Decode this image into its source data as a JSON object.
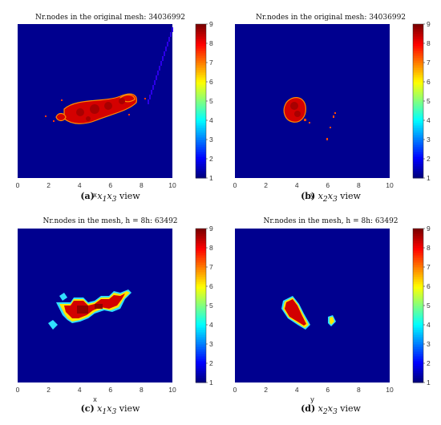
{
  "chart_data": [
    {
      "type": "heatmap",
      "title": "Nr.nodes in the original mesh: 34036992",
      "xlabel": "x",
      "xticks": [
        0,
        2,
        4,
        6,
        8,
        10
      ],
      "xlim": [
        0,
        10
      ],
      "colorbar": {
        "min": 1,
        "max": 9,
        "ticks": [
          1,
          2,
          3,
          4,
          5,
          6,
          7,
          8,
          9
        ]
      },
      "caption": {
        "label": "(a)",
        "var": "x",
        "sub1": "1",
        "var2": "x",
        "sub2": "3",
        "text": " view"
      },
      "background_value": 1,
      "description_regions": [
        {
          "cx": 6.5,
          "cy": 0.53,
          "rx": 1.9,
          "ry": 0.25,
          "rot": -10,
          "value": 9
        },
        {
          "cx": 4.2,
          "cy": 0.51,
          "rx": 1.0,
          "ry": 0.18,
          "rot": -5,
          "value": 9
        },
        {
          "cx": 7.6,
          "cy": 0.57,
          "rx": 0.5,
          "ry": 0.09,
          "rot": -20,
          "value": 9
        }
      ]
    },
    {
      "type": "heatmap",
      "title": "Nr.nodes in the original mesh: 34036992",
      "xlabel": "y",
      "xticks": [
        0,
        2,
        4,
        6,
        8,
        10
      ],
      "xlim": [
        0,
        10
      ],
      "colorbar": {
        "min": 1,
        "max": 9,
        "ticks": [
          1,
          2,
          3,
          4,
          5,
          6,
          7,
          8,
          9
        ]
      },
      "caption": {
        "label": "(b)",
        "var": "x",
        "sub1": "2",
        "var2": "x",
        "sub2": "3",
        "text": " view"
      },
      "background_value": 1,
      "description_regions": [
        {
          "cx": 3.7,
          "cy": 0.58,
          "rx": 0.45,
          "ry": 0.12,
          "rot": 0,
          "value": 9
        }
      ]
    },
    {
      "type": "heatmap",
      "title": "Nr.nodes in the mesh, h = 8h: 63492",
      "xlabel": "x",
      "xticks": [
        0,
        2,
        4,
        6,
        8,
        10
      ],
      "xlim": [
        0,
        10
      ],
      "colorbar": {
        "min": 1,
        "max": 9,
        "ticks": [
          1,
          2,
          3,
          4,
          5,
          6,
          7,
          8,
          9
        ]
      },
      "caption": {
        "label": "(c)",
        "var": "x",
        "sub1": "1",
        "var2": "x",
        "sub2": "3",
        "text": " view"
      },
      "background_value": 1,
      "description_regions": [
        {
          "cx": 5.5,
          "cy": 0.5,
          "rx": 2.3,
          "ry": 0.12,
          "rot": 0,
          "value": 9
        }
      ]
    },
    {
      "type": "heatmap",
      "title": "Nr.nodes in the mesh, h = 8h: 63492",
      "xlabel": "y",
      "xticks": [
        0,
        2,
        4,
        6,
        8,
        10
      ],
      "xlim": [
        0,
        10
      ],
      "colorbar": {
        "min": 1,
        "max": 9,
        "ticks": [
          1,
          2,
          3,
          4,
          5,
          6,
          7,
          8,
          9
        ]
      },
      "caption": {
        "label": "(d)",
        "var": "x",
        "sub1": "2",
        "var2": "x",
        "sub2": "3",
        "text": " view"
      },
      "background_value": 1,
      "description_regions": [
        {
          "cx": 3.9,
          "cy": 0.55,
          "rx": 0.4,
          "ry": 0.1,
          "rot": 0,
          "value": 9
        }
      ]
    }
  ],
  "colors": {
    "background": "#00008f",
    "hot": "#cc0000",
    "hot_edge": "#ff5a00",
    "edge_yellow": "#ffe600",
    "edge_cyan": "#30e0ff"
  }
}
